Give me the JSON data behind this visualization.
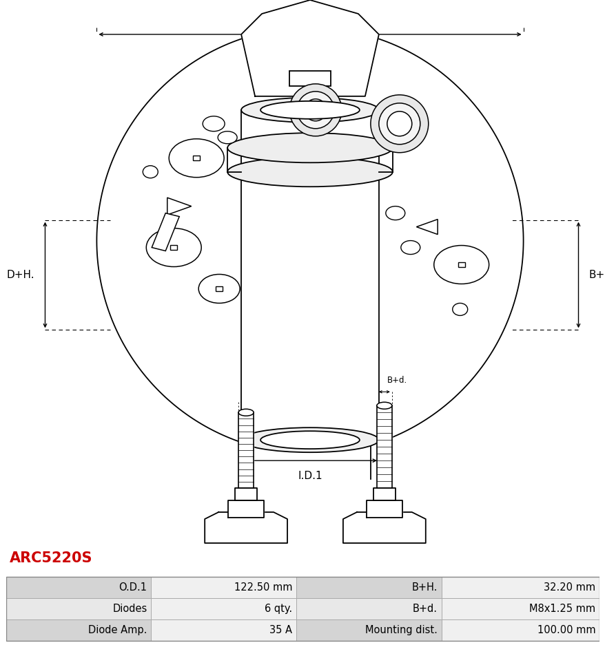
{
  "title": "ARC5220S",
  "title_color": "#cc0000",
  "bg_color": "#ffffff",
  "table_rows": [
    [
      "O.D.1",
      "122.50 mm",
      "B+H.",
      "32.20 mm"
    ],
    [
      "Diodes",
      "6 qty.",
      "B+d.",
      "M8x1.25 mm"
    ],
    [
      "Diode Amp.",
      "35 A",
      "Mounting dist.",
      "100.00 mm"
    ]
  ],
  "lc": "black",
  "lw": 1.3,
  "font_size_dim": 11,
  "font_size_title": 15,
  "font_size_table": 10.5
}
